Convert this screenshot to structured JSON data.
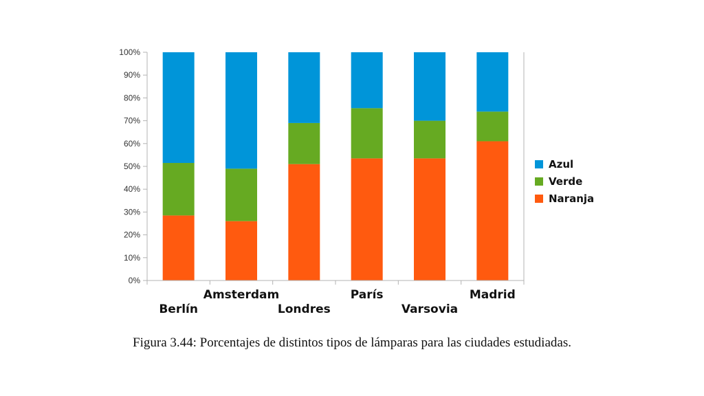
{
  "caption": "Figura 3.44: Porcentajes de distintos tipos de lámparas para las ciudades estudiadas.",
  "chart_data": {
    "type": "bar",
    "stacked": true,
    "categories": [
      "Berlín",
      "Amsterdam",
      "Londres",
      "París",
      "Varsovia",
      "Madrid"
    ],
    "series": [
      {
        "name": "Naranja",
        "color": "#ff5a0f",
        "values": [
          28.5,
          26,
          51,
          53.5,
          53.5,
          61
        ]
      },
      {
        "name": "Verde",
        "color": "#66aa22",
        "values": [
          23,
          23,
          18,
          22,
          16.5,
          13
        ]
      },
      {
        "name": "Azul",
        "color": "#0095d9",
        "values": [
          48.5,
          51,
          31,
          24.5,
          30,
          26
        ]
      }
    ],
    "ylim": [
      0,
      100
    ],
    "yticks": [
      "0%",
      "10%",
      "20%",
      "30%",
      "40%",
      "50%",
      "60%",
      "70%",
      "80%",
      "90%",
      "100%"
    ],
    "grid": false,
    "legend": {
      "placement": "right",
      "order": [
        "Azul",
        "Verde",
        "Naranja"
      ]
    }
  }
}
